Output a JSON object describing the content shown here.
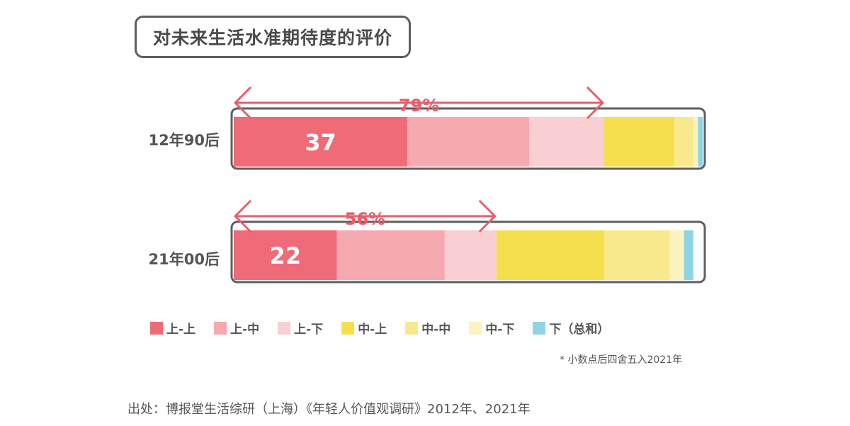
{
  "title": "对未来生活水准期待度的评价",
  "chart_data": {
    "type": "bar",
    "orientation": "horizontal-stacked-100",
    "categories": [
      "12年90后",
      "21年00后"
    ],
    "series": [
      {
        "name": "上-上",
        "color": "#f06b78",
        "values": [
          37,
          22
        ]
      },
      {
        "name": "上-中",
        "color": "#f6aab0",
        "values": [
          26,
          23
        ]
      },
      {
        "name": "上-下",
        "color": "#f9cfd3",
        "values": [
          16,
          11
        ]
      },
      {
        "name": "中-上",
        "color": "#f5df4d",
        "values": [
          15,
          23
        ]
      },
      {
        "name": "中-中",
        "color": "#f9e98d",
        "values": [
          4,
          14
        ]
      },
      {
        "name": "中-下",
        "color": "#fcf3c2",
        "values": [
          1,
          3
        ]
      },
      {
        "name": "下（总和）",
        "color": "#8fd3e6",
        "values": [
          1,
          2
        ]
      }
    ],
    "data_labels": [
      "37",
      "22"
    ],
    "bracket_labels": [
      "79%",
      "56%"
    ],
    "bracket_values": [
      79,
      56
    ],
    "xlim": [
      0,
      100
    ]
  },
  "note": "* 小数点后四舍五入2021年",
  "source": "出处：博报堂生活综研（上海）《年轻人价值观调研》2012年、2021年",
  "colors": {
    "accent": "#e95d6c",
    "border": "#5e5e5e"
  }
}
